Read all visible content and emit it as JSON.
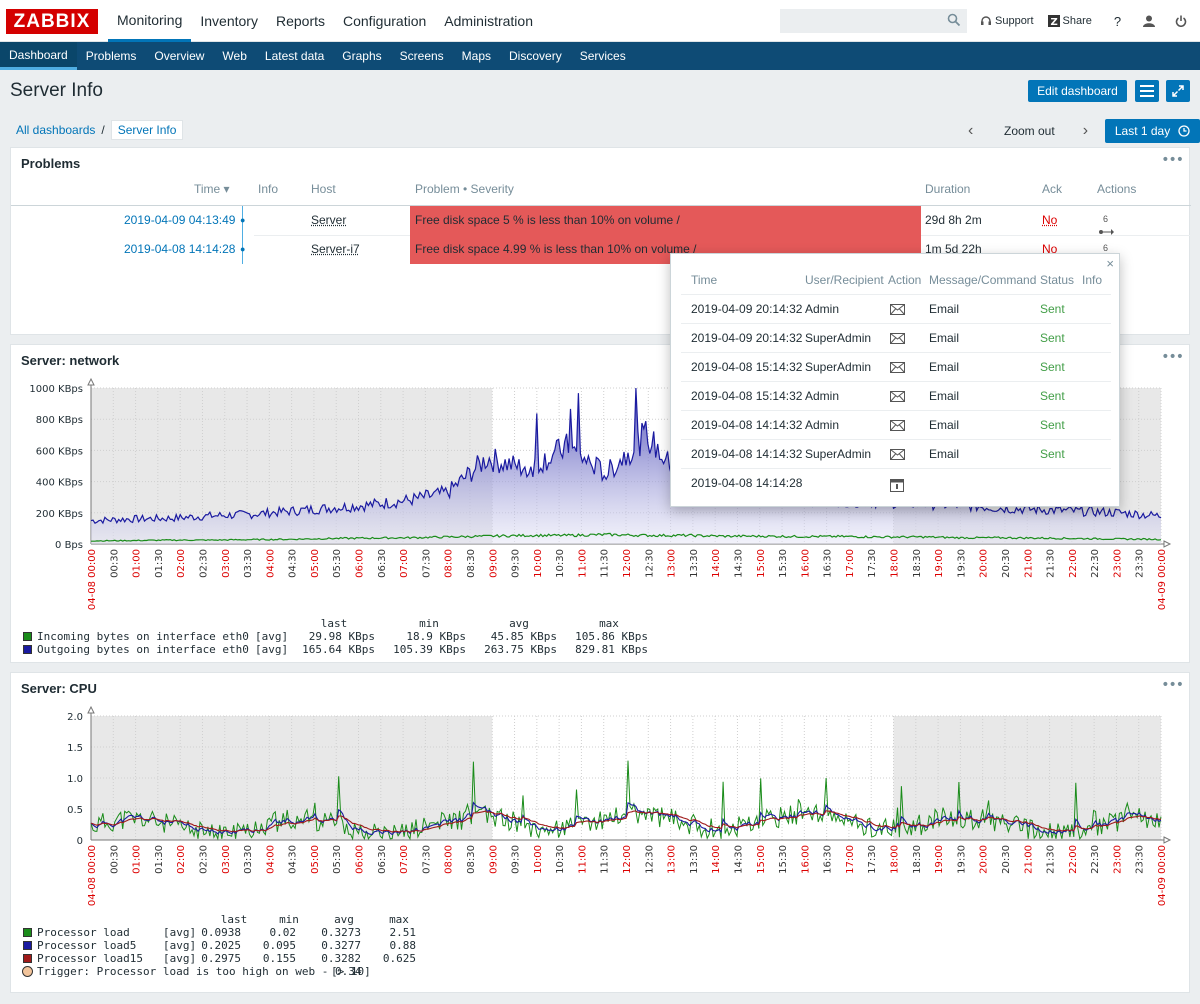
{
  "header": {
    "logo": "ZABBIX",
    "menu": [
      "Monitoring",
      "Inventory",
      "Reports",
      "Configuration",
      "Administration"
    ],
    "active_menu": "Monitoring",
    "search_placeholder": "",
    "support": "Support",
    "share": "Share",
    "help": "?"
  },
  "submenu": [
    "Dashboard",
    "Problems",
    "Overview",
    "Web",
    "Latest data",
    "Graphs",
    "Screens",
    "Maps",
    "Discovery",
    "Services"
  ],
  "page": {
    "title": "Server Info",
    "edit_button": "Edit dashboard",
    "breadcrumb_root": "All dashboards",
    "breadcrumb_sep": "/",
    "breadcrumb_current": "Server Info",
    "zoom_out": "Zoom out",
    "time_range": "Last 1 day"
  },
  "problems": {
    "title": "Problems",
    "headers": {
      "time": "Time ▾",
      "info": "Info",
      "host": "Host",
      "problem": "Problem • Severity",
      "duration": "Duration",
      "ack": "Ack",
      "actions": "Actions"
    },
    "rows": [
      {
        "time": "2019-04-09 04:13:49",
        "host": "Server",
        "problem": "Free disk space 5 % is less than 10% on volume /",
        "duration": "29d 8h 2m",
        "ack": "No",
        "actions_count": "6"
      },
      {
        "time": "2019-04-08 14:14:28",
        "host": "Server-i7",
        "problem": "Free disk space 4.99 % is less than 10% on volume /",
        "duration": "1m 5d 22h",
        "ack": "No",
        "actions_count": "6"
      }
    ]
  },
  "popup": {
    "headers": {
      "time": "Time",
      "user": "User/Recipient",
      "action": "Action",
      "message": "Message/Command",
      "status": "Status",
      "info": "Info"
    },
    "rows": [
      {
        "time": "2019-04-09 20:14:32",
        "user": "Admin",
        "action": "mail",
        "message": "Email",
        "status": "Sent"
      },
      {
        "time": "2019-04-09 20:14:32",
        "user": "SuperAdmin",
        "action": "mail",
        "message": "Email",
        "status": "Sent"
      },
      {
        "time": "2019-04-08 15:14:32",
        "user": "SuperAdmin",
        "action": "mail",
        "message": "Email",
        "status": "Sent"
      },
      {
        "time": "2019-04-08 15:14:32",
        "user": "Admin",
        "action": "mail",
        "message": "Email",
        "status": "Sent"
      },
      {
        "time": "2019-04-08 14:14:32",
        "user": "Admin",
        "action": "mail",
        "message": "Email",
        "status": "Sent"
      },
      {
        "time": "2019-04-08 14:14:32",
        "user": "SuperAdmin",
        "action": "mail",
        "message": "Email",
        "status": "Sent"
      },
      {
        "time": "2019-04-08 14:14:28",
        "user": "",
        "action": "calendar",
        "message": "",
        "status": ""
      }
    ]
  },
  "colors": {
    "accent": "#0275b8",
    "nav": "#0e4b75",
    "severity": "#e45959",
    "ok": "#429e47",
    "problem": "#dc0000"
  },
  "chart_data": [
    {
      "type": "area",
      "title": "Server: network",
      "ylim": [
        0,
        1000
      ],
      "y_ticks": [
        "0 Bps",
        "200 KBps",
        "400 KBps",
        "600 KBps",
        "800 KBps",
        "1000 KBps"
      ],
      "x_ticks": [
        "04-08 00:00",
        "00:30",
        "01:00",
        "01:30",
        "02:00",
        "02:30",
        "03:00",
        "03:30",
        "04:00",
        "04:30",
        "05:00",
        "05:30",
        "06:00",
        "06:30",
        "07:00",
        "07:30",
        "08:00",
        "08:30",
        "09:00",
        "09:30",
        "10:00",
        "10:30",
        "11:00",
        "11:30",
        "12:00",
        "12:30",
        "13:00",
        "13:30",
        "14:00",
        "14:30",
        "15:00",
        "15:30",
        "16:00",
        "16:30",
        "17:00",
        "17:30",
        "18:00",
        "18:30",
        "19:00",
        "19:30",
        "20:00",
        "20:30",
        "21:00",
        "21:30",
        "22:00",
        "22:30",
        "23:00",
        "23:30",
        "04-09 00:00"
      ],
      "legend_header": {
        "last": "last",
        "min": "min",
        "avg": "avg",
        "max": "max"
      },
      "x": [
        "00:00",
        "01:00",
        "02:00",
        "03:00",
        "04:00",
        "05:00",
        "06:00",
        "07:00",
        "08:00",
        "09:00",
        "09:30",
        "10:00",
        "10:30",
        "11:00",
        "11:30",
        "12:00",
        "13:00",
        "14:00",
        "15:00",
        "16:00",
        "17:00",
        "18:00",
        "19:00",
        "20:00",
        "21:00",
        "22:00",
        "23:00",
        "24:00"
      ],
      "series": [
        {
          "name": "Incoming bytes on interface eth0",
          "func": "[avg]",
          "last": "29.98 KBps",
          "min": "18.9 KBps",
          "avg": "45.85 KBps",
          "max": "105.86 KBps",
          "color": "#1a8c1a",
          "values": [
            20,
            22,
            25,
            25,
            28,
            30,
            35,
            38,
            40,
            45,
            50,
            55,
            55,
            60,
            55,
            55,
            50,
            50,
            48,
            48,
            45,
            45,
            40,
            40,
            38,
            35,
            32,
            30
          ]
        },
        {
          "name": "Outgoing bytes on interface eth0",
          "func": "[avg]",
          "last": "165.64 KBps",
          "min": "105.39 KBps",
          "avg": "263.75 KBps",
          "max": "829.81 KBps",
          "color": "#1a1aa0",
          "values": [
            150,
            160,
            165,
            180,
            190,
            210,
            230,
            250,
            280,
            330,
            550,
            480,
            620,
            450,
            700,
            380,
            300,
            300,
            290,
            280,
            270,
            260,
            250,
            230,
            220,
            210,
            200,
            180
          ]
        }
      ]
    },
    {
      "type": "line",
      "title": "Server: CPU",
      "ylim": [
        0,
        2
      ],
      "y_ticks": [
        "0",
        "0.5",
        "1.0",
        "1.5",
        "2.0"
      ],
      "x_ticks": [
        "04-08 00:00",
        "00:30",
        "01:00",
        "01:30",
        "02:00",
        "02:30",
        "03:00",
        "03:30",
        "04:00",
        "04:30",
        "05:00",
        "05:30",
        "06:00",
        "06:30",
        "07:00",
        "07:30",
        "08:00",
        "08:30",
        "09:00",
        "09:30",
        "10:00",
        "10:30",
        "11:00",
        "11:30",
        "12:00",
        "12:30",
        "13:00",
        "13:30",
        "14:00",
        "14:30",
        "15:00",
        "15:30",
        "16:00",
        "16:30",
        "17:00",
        "17:30",
        "18:00",
        "18:30",
        "19:00",
        "19:30",
        "20:00",
        "20:30",
        "21:00",
        "21:30",
        "22:00",
        "22:30",
        "23:00",
        "23:30",
        "04-09 00:00"
      ],
      "legend_header": {
        "last": "last",
        "min": "min",
        "avg": "avg",
        "max": "max"
      },
      "series": [
        {
          "name": "Processor load",
          "func": "[avg]",
          "last": "0.0938",
          "min": "0.02",
          "avg": "0.3273",
          "max": "2.51",
          "color": "#1a8c1a"
        },
        {
          "name": "Processor load5",
          "func": "[avg]",
          "last": "0.2025",
          "min": "0.095",
          "avg": "0.3277",
          "max": "0.88",
          "color": "#1a1aa0"
        },
        {
          "name": "Processor load15",
          "func": "[avg]",
          "last": "0.2975",
          "min": "0.155",
          "avg": "0.3282",
          "max": "0.625",
          "color": "#a01a1a"
        }
      ],
      "trigger": {
        "label": "Trigger: Processor load is too high on web - 0.34",
        "cond": "[> 10]",
        "color": "#f2c49b"
      }
    }
  ]
}
